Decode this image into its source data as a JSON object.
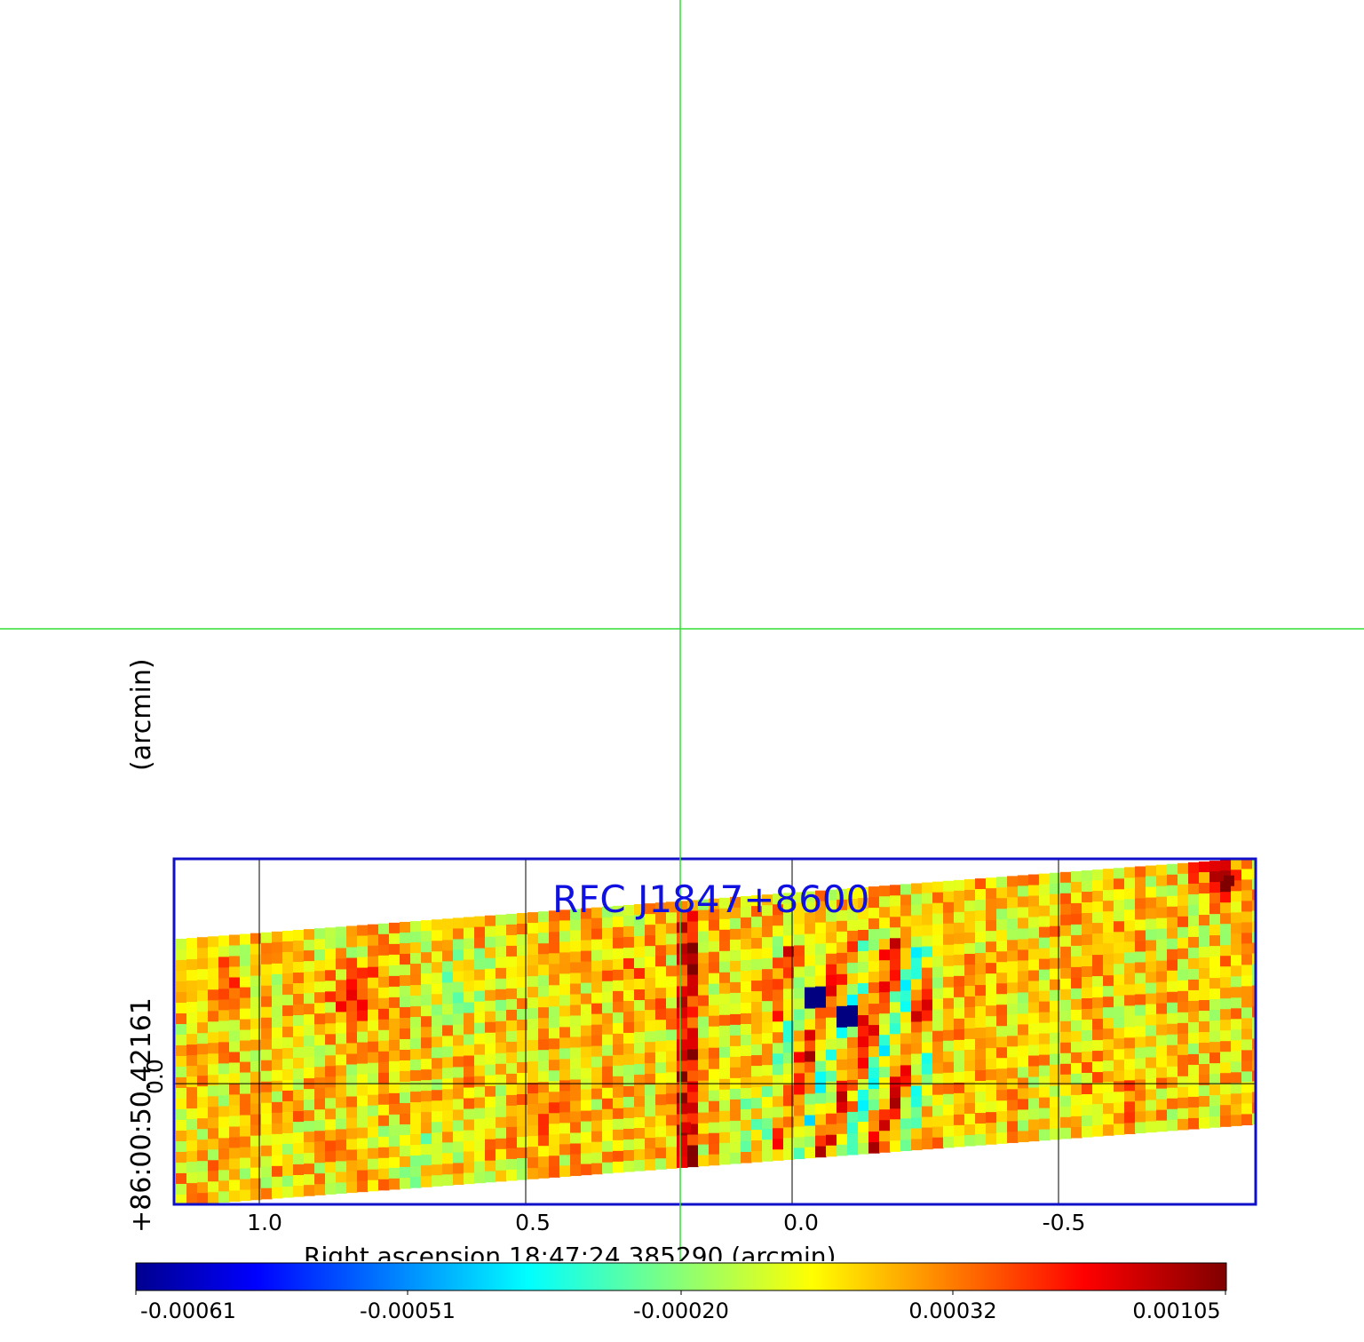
{
  "chart_data": {
    "type": "heatmap",
    "title": "RFC J1847+8600",
    "xlabel": "Right ascension 18:47:24.385290 (arcmin)",
    "ylabel_unit": "(arcmin)",
    "ylabel_value": "+86:00:50.42161",
    "x_ticks": [
      "1.0",
      "0.5",
      "0.0",
      "-0.5"
    ],
    "x_tick_values": [
      1.0,
      0.5,
      0.0,
      -0.5
    ],
    "xlim": [
      1.16,
      -0.87
    ],
    "y_ticks": [
      "0.0"
    ],
    "y_tick_values": [
      0.0
    ],
    "ylim": [
      -0.22,
      0.41
    ],
    "colormap": "jet",
    "colorbar_ticks": [
      "-0.00061",
      "-0.00051",
      "-0.00020",
      "0.00032",
      "0.00105"
    ],
    "colorbar_range": [
      -0.00061,
      0.00105
    ],
    "grid": true,
    "crosshair": {
      "x": 0.21,
      "color": "#33dd33"
    },
    "frame_color": "#1010c8",
    "notable_features": [
      {
        "label": "blue pixel",
        "x": -0.04,
        "y": 0.16,
        "value": -0.00061
      },
      {
        "label": "blue pixel",
        "x": -0.11,
        "y": 0.12,
        "value": -0.00061
      },
      {
        "label": "red corner peak",
        "x": -0.82,
        "y": 0.37,
        "value": 0.00105
      },
      {
        "label": "red streak",
        "x": 0.2,
        "y": -0.08,
        "value": 0.0009
      }
    ]
  }
}
